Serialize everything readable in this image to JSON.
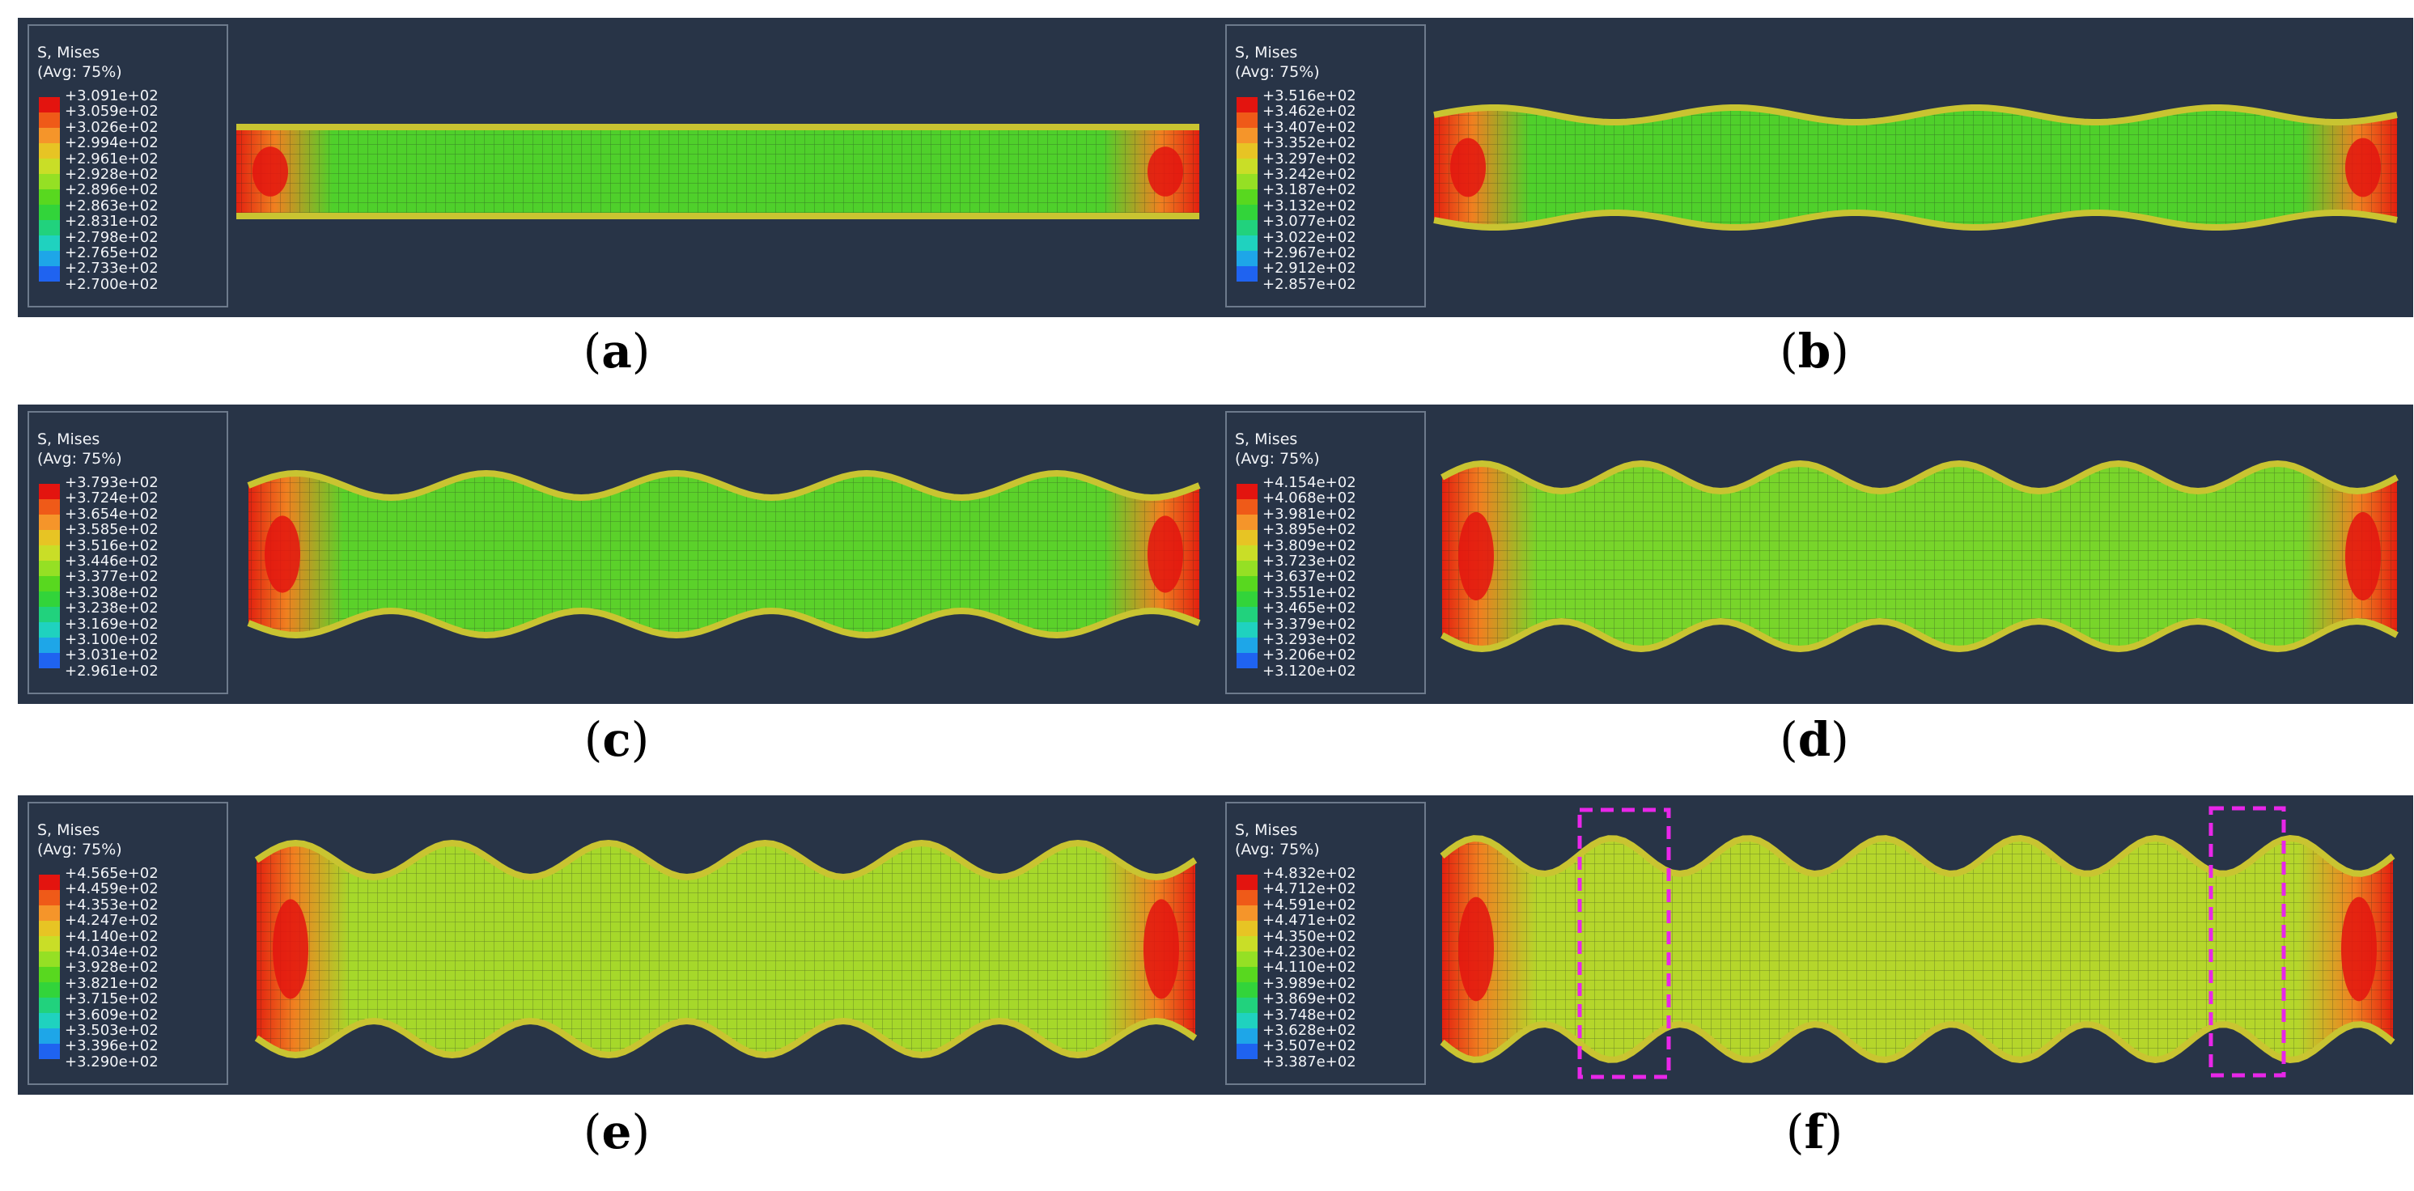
{
  "legend_title_line1": "S, Mises",
  "legend_title_line2": "(Avg: 75%)",
  "legend_colors": [
    "#e3140f",
    "#ef5a18",
    "#f5952a",
    "#e7c424",
    "#c9de27",
    "#95e024",
    "#58d81f",
    "#32d43a",
    "#21d27d",
    "#1fd2bf",
    "#1ea6e8",
    "#1f63f0",
    "#1d22d8"
  ],
  "panels": [
    {
      "id": "a",
      "label_open": "(",
      "label_letter": "a",
      "label_close": ")",
      "values": [
        "+3.091e+02",
        "+3.059e+02",
        "+3.026e+02",
        "+2.994e+02",
        "+2.961e+02",
        "+2.928e+02",
        "+2.896e+02",
        "+2.863e+02",
        "+2.831e+02",
        "+2.798e+02",
        "+2.765e+02",
        "+2.733e+02",
        "+2.700e+02"
      ]
    },
    {
      "id": "b",
      "label_open": "(",
      "label_letter": "b",
      "label_close": ")",
      "values": [
        "+3.516e+02",
        "+3.462e+02",
        "+3.407e+02",
        "+3.352e+02",
        "+3.297e+02",
        "+3.242e+02",
        "+3.187e+02",
        "+3.132e+02",
        "+3.077e+02",
        "+3.022e+02",
        "+2.967e+02",
        "+2.912e+02",
        "+2.857e+02"
      ]
    },
    {
      "id": "c",
      "label_open": "(",
      "label_letter": "c",
      "label_close": ")",
      "values": [
        "+3.793e+02",
        "+3.724e+02",
        "+3.654e+02",
        "+3.585e+02",
        "+3.516e+02",
        "+3.446e+02",
        "+3.377e+02",
        "+3.308e+02",
        "+3.238e+02",
        "+3.169e+02",
        "+3.100e+02",
        "+3.031e+02",
        "+2.961e+02"
      ]
    },
    {
      "id": "d",
      "label_open": "(",
      "label_letter": "d",
      "label_close": ")",
      "values": [
        "+4.154e+02",
        "+4.068e+02",
        "+3.981e+02",
        "+3.895e+02",
        "+3.809e+02",
        "+3.723e+02",
        "+3.637e+02",
        "+3.551e+02",
        "+3.465e+02",
        "+3.379e+02",
        "+3.293e+02",
        "+3.206e+02",
        "+3.120e+02"
      ]
    },
    {
      "id": "e",
      "label_open": "(",
      "label_letter": "e",
      "label_close": ")",
      "values": [
        "+4.565e+02",
        "+4.459e+02",
        "+4.353e+02",
        "+4.247e+02",
        "+4.140e+02",
        "+4.034e+02",
        "+3.928e+02",
        "+3.821e+02",
        "+3.715e+02",
        "+3.609e+02",
        "+3.503e+02",
        "+3.396e+02",
        "+3.290e+02"
      ]
    },
    {
      "id": "f",
      "label_open": "(",
      "label_letter": "f",
      "label_close": ")",
      "values": [
        "+4.832e+02",
        "+4.712e+02",
        "+4.591e+02",
        "+4.471e+02",
        "+4.350e+02",
        "+4.230e+02",
        "+4.110e+02",
        "+3.989e+02",
        "+3.869e+02",
        "+3.748e+02",
        "+3.628e+02",
        "+3.507e+02",
        "+3.387e+02"
      ]
    }
  ]
}
